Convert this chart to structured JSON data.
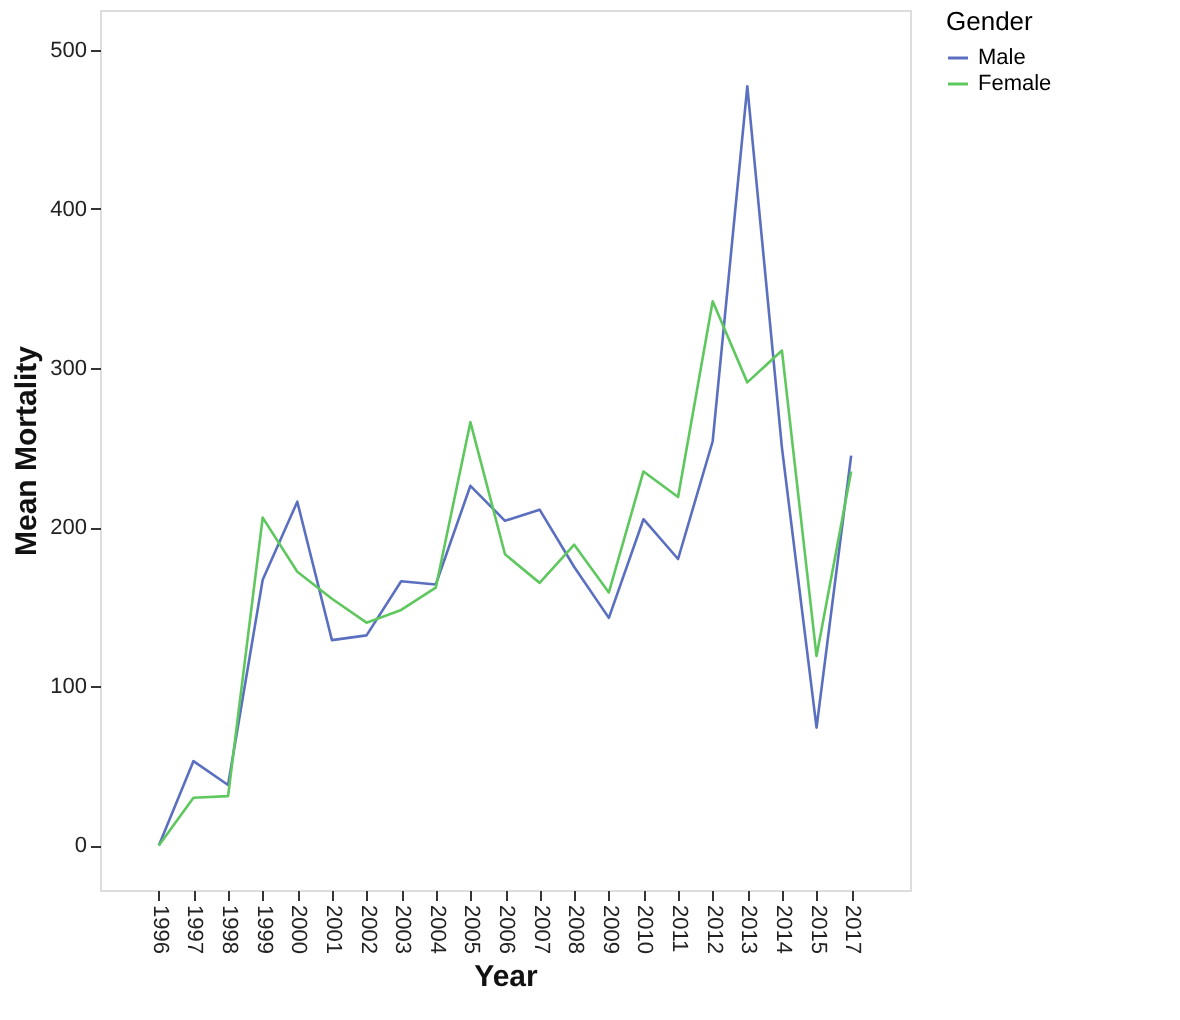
{
  "chart_data": {
    "type": "line",
    "xlabel": "Year",
    "ylabel": "Mean Mortality",
    "legend_title": "Gender",
    "legend": "top right",
    "grid": false,
    "categories": [
      "1996",
      "1997",
      "1998",
      "1999",
      "2000",
      "2001",
      "2002",
      "2003",
      "2004",
      "2005",
      "2006",
      "2007",
      "2008",
      "2009",
      "2010",
      "2011",
      "2012",
      "2013",
      "2014",
      "2015",
      "2017"
    ],
    "ylim": [
      -28,
      525
    ],
    "yticks": [
      0,
      100,
      200,
      300,
      400,
      500
    ],
    "series": [
      {
        "name": "Male",
        "color": "#5a6fc0",
        "values": [
          0,
          53,
          38,
          167,
          216,
          129,
          132,
          166,
          164,
          226,
          204,
          211,
          175,
          143,
          205,
          180,
          254,
          477,
          250,
          74,
          245
        ]
      },
      {
        "name": "Female",
        "color": "#5ec85e",
        "values": [
          0,
          30,
          31,
          206,
          172,
          155,
          140,
          148,
          162,
          266,
          183,
          165,
          189,
          159,
          235,
          219,
          342,
          291,
          311,
          119,
          235
        ]
      }
    ]
  }
}
